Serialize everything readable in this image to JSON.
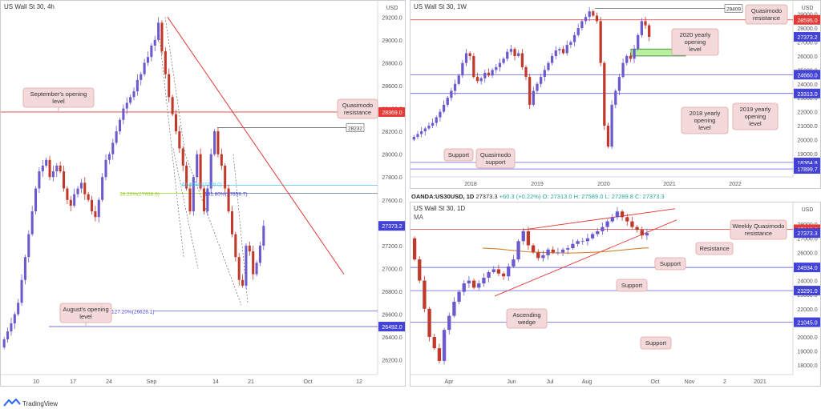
{
  "panels": {
    "left": {
      "title": "US Wall St 30, 4h",
      "currency": "USD",
      "y_ticks": [
        "29200.0",
        "29000.0",
        "28800.0",
        "28600.0",
        "28400.0",
        "28200.0",
        "28000.0",
        "27800.0",
        "27600.0",
        "27400.0",
        "27200.0",
        "27000.0",
        "26800.0",
        "26600.0",
        "26400.0",
        "26200.0"
      ],
      "x_ticks": [
        "10",
        "17",
        "24",
        "Sep",
        "14",
        "21",
        "Oct",
        "12"
      ],
      "price_tags": [
        {
          "text": "28369.0",
          "color": "#e53935",
          "text_color": "#ffffff",
          "y": 28369
        },
        {
          "text": "27373.2",
          "color": "#4343d8",
          "text_color": "#ffffff",
          "y": 27373
        },
        {
          "text": "26492.0",
          "color": "#4343d8",
          "text_color": "#ffffff",
          "y": 26492
        }
      ],
      "annotations": [
        {
          "text": "September's opening level",
          "kind": "callout"
        },
        {
          "text": "Quasimodo resistance",
          "kind": "callout"
        },
        {
          "text": "August's opening level",
          "kind": "callout"
        }
      ],
      "value_labels": [
        {
          "text": "28232",
          "kind": "box"
        },
        {
          "text": "38.20%(27658.6)",
          "color": "#9acd32"
        },
        {
          "text": "61.80%(27728.0)",
          "color": "#4fc3f7"
        },
        {
          "text": "161.80%(27659.7)",
          "color": "#4343d8"
        },
        {
          "text": "127.20%(26628.1)",
          "color": "#4343d8"
        }
      ]
    },
    "top_right": {
      "title": "US Wall St 30, 1W",
      "currency": "USD",
      "y_ticks": [
        "29000.0",
        "28000.0",
        "27000.0",
        "26000.0",
        "25000.0",
        "24000.0",
        "23000.0",
        "22000.0",
        "21000.0",
        "20000.0",
        "19000.0",
        "18000.0"
      ],
      "x_ticks": [
        "2018",
        "2019",
        "2020",
        "2021",
        "2022"
      ],
      "price_tags": [
        {
          "text": "28595.0",
          "color": "#e53935",
          "text_color": "#ffffff",
          "y": 28595
        },
        {
          "text": "27373.2",
          "color": "#4343d8",
          "text_color": "#ffffff",
          "y": 27373
        },
        {
          "text": "24660.0",
          "color": "#4343d8",
          "text_color": "#ffffff",
          "y": 24660
        },
        {
          "text": "23313.0",
          "color": "#4343d8",
          "text_color": "#ffffff",
          "y": 23313
        },
        {
          "text": "18364.8",
          "color": "#4343d8",
          "text_color": "#ffffff",
          "y": 18364.8
        },
        {
          "text": "17899.7",
          "color": "#4343d8",
          "text_color": "#ffffff",
          "y": 17899.7
        }
      ],
      "annotations": [
        {
          "text": "Quasimodo resistance",
          "kind": "callout"
        },
        {
          "text": "2020 yearly opening level",
          "kind": "callout"
        },
        {
          "text": "2018 yearly opening level",
          "kind": "callout"
        },
        {
          "text": "2019 yearly opening level",
          "kind": "callout"
        },
        {
          "text": "Support",
          "kind": "callout"
        },
        {
          "text": "Quasimodo support",
          "kind": "callout"
        }
      ],
      "value_labels": [
        {
          "text": "29409",
          "kind": "box"
        }
      ]
    },
    "bottom_right": {
      "symbol_line": {
        "symbol": "OANDA:US30USD, 1D",
        "price": "27373.3",
        "change": "+60.3 (+0.22%)",
        "ohlc": "O: 27313.0  H: 27589.0  L: 27289.8  C: 27373.3"
      },
      "title": "US Wall St 30, 1D",
      "ma_label": "MA",
      "currency": "USD",
      "y_ticks": [
        "28000.0",
        "27000.0",
        "26000.0",
        "25000.0",
        "24000.0",
        "23000.0",
        "22000.0",
        "21000.0",
        "20000.0",
        "19000.0",
        "18000.0"
      ],
      "x_ticks": [
        "Apr",
        "Jun",
        "Jul",
        "Aug",
        "Oct",
        "Nov",
        "2",
        "2021"
      ],
      "price_tags": [
        {
          "text": "27640.0",
          "color": "#e53935",
          "text_color": "#ffffff",
          "y": 27640
        },
        {
          "text": "27373.3",
          "color": "#4343d8",
          "text_color": "#ffffff",
          "y": 27373
        },
        {
          "text": "24934.0",
          "color": "#4343d8",
          "text_color": "#ffffff",
          "y": 24934
        },
        {
          "text": "23291.0",
          "color": "#4343d8",
          "text_color": "#ffffff",
          "y": 23291
        },
        {
          "text": "21045.0",
          "color": "#4343d8",
          "text_color": "#ffffff",
          "y": 21045
        }
      ],
      "annotations": [
        {
          "text": "Weekly Quasimodo resistance",
          "kind": "callout"
        },
        {
          "text": "Resistance",
          "kind": "callout"
        },
        {
          "text": "Support",
          "kind": "callout"
        },
        {
          "text": "Support",
          "kind": "callout"
        },
        {
          "text": "Support",
          "kind": "callout"
        },
        {
          "text": "Ascending wedge",
          "kind": "callout"
        }
      ]
    }
  },
  "footer": {
    "brand": "TradingView"
  },
  "colors": {
    "up": "#26a69a",
    "down": "#ef5350",
    "candle_up": "#6a5acd",
    "candle_down": "#c0392b",
    "level": "#4343d8",
    "resistance": "#e53935",
    "ma": "#d2822d",
    "callout_bg": "#f3d9d9",
    "callout_border": "#e0a5a5",
    "zone": "#b8f0a0"
  },
  "chart_data": [
    {
      "type": "candlestick",
      "title": "US Wall St 30, 4h",
      "ylim": [
        26100,
        29300
      ],
      "series_close": [
        26380,
        26450,
        26520,
        26600,
        26700,
        26900,
        27100,
        27300,
        27500,
        27700,
        27850,
        27900,
        27950,
        27800,
        27850,
        27900,
        27850,
        27700,
        27600,
        27550,
        27650,
        27700,
        27750,
        27650,
        27600,
        27500,
        27450,
        27600,
        27800,
        27950,
        28000,
        28100,
        28200,
        28300,
        28400,
        28450,
        28500,
        28550,
        28650,
        28700,
        28800,
        28850,
        28950,
        29000,
        29150,
        28900,
        28700,
        28500,
        28350,
        28200,
        28050,
        27900,
        27700,
        27500,
        27800,
        28000,
        27700,
        27500,
        27700,
        28000,
        28200,
        28000,
        27900,
        27700,
        27500,
        27300,
        27100,
        26900,
        26850,
        27200,
        27150,
        26950,
        27050,
        27200,
        27373
      ],
      "levels": [
        28369,
        28232,
        27658.6,
        27728.0,
        27659.7,
        26628.1,
        26492.0
      ]
    },
    {
      "type": "candlestick",
      "title": "US Wall St 30, 1W",
      "ylim": [
        17500,
        29500
      ],
      "series_close": [
        20200,
        20400,
        20600,
        20800,
        21000,
        21200,
        21600,
        22000,
        22500,
        23000,
        23500,
        24000,
        24600,
        25500,
        26200,
        26000,
        24500,
        24200,
        24400,
        24800,
        24600,
        25000,
        25200,
        25500,
        25800,
        26300,
        26500,
        26000,
        26200,
        25200,
        24500,
        22500,
        23500,
        24000,
        24500,
        25000,
        25500,
        26000,
        26400,
        26500,
        26200,
        26800,
        27000,
        27500,
        28000,
        28500,
        28800,
        29200,
        28900,
        28500,
        25500,
        21000,
        19500,
        22500,
        23500,
        24500,
        25500,
        26000,
        25800,
        26500,
        27500,
        28500,
        28200,
        27373
      ],
      "levels": [
        29409,
        28595,
        24660,
        23313,
        18364.8,
        17899.7
      ],
      "zone": [
        26000,
        26500
      ]
    },
    {
      "type": "candlestick",
      "title": "US Wall St 30, 1D",
      "ylim": [
        17500,
        29200
      ],
      "series_close": [
        25500,
        24000,
        22000,
        20000,
        19200,
        18300,
        20500,
        21500,
        22500,
        23200,
        23800,
        24000,
        23500,
        23800,
        24200,
        24600,
        24800,
        24500,
        24300,
        25000,
        25500,
        26800,
        27500,
        26500,
        26000,
        25600,
        25800,
        26200,
        26000,
        26000,
        26200,
        26300,
        26600,
        26800,
        26800,
        27000,
        27300,
        27500,
        27800,
        28200,
        28500,
        28900,
        28500,
        28200,
        27800,
        27600,
        27200,
        27373
      ],
      "ma": [
        26300,
        26280,
        26250,
        26200,
        26150,
        26100,
        26050,
        26020,
        26000,
        25980,
        25970,
        25960,
        25950,
        25960,
        25980,
        26000,
        26030,
        26060,
        26100,
        26150,
        26200,
        26250,
        26300,
        26320
      ],
      "levels": [
        27640,
        24934,
        23291,
        21045
      ]
    }
  ]
}
